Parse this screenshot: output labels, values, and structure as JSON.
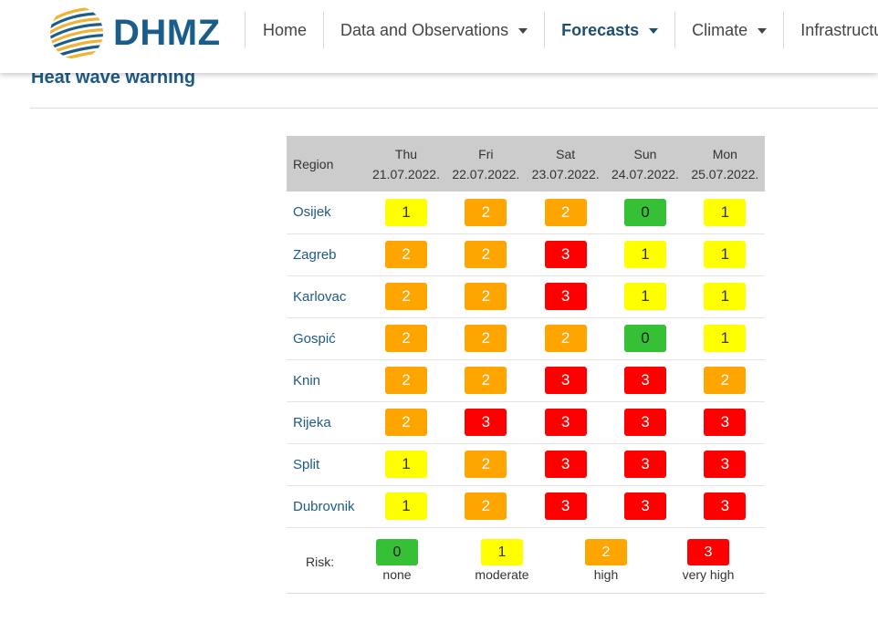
{
  "brand": {
    "logo_text": "DHMZ",
    "color": "#1b5d8a"
  },
  "nav": [
    {
      "label": "Home",
      "dropdown": false,
      "active": false
    },
    {
      "label": "Data and Observations",
      "dropdown": true,
      "active": false
    },
    {
      "label": "Forecasts",
      "dropdown": true,
      "active": true
    },
    {
      "label": "Climate",
      "dropdown": true,
      "active": false
    },
    {
      "label": "Infrastructure",
      "dropdown": false,
      "active": false
    }
  ],
  "page": {
    "title": "Heat wave warning"
  },
  "table": {
    "region_header": "Region",
    "days": [
      {
        "name": "Thu",
        "date": "21.07.2022."
      },
      {
        "name": "Fri",
        "date": "22.07.2022."
      },
      {
        "name": "Sat",
        "date": "23.07.2022."
      },
      {
        "name": "Sun",
        "date": "24.07.2022."
      },
      {
        "name": "Mon",
        "date": "25.07.2022."
      }
    ],
    "rows": [
      {
        "region": "Osijek",
        "values": [
          "1",
          "2",
          "2",
          "0",
          "1"
        ]
      },
      {
        "region": "Zagreb",
        "values": [
          "2",
          "2",
          "3",
          "1",
          "1"
        ]
      },
      {
        "region": "Karlovac",
        "values": [
          "2",
          "2",
          "3",
          "1",
          "1"
        ]
      },
      {
        "region": "Gospić",
        "values": [
          "2",
          "2",
          "2",
          "0",
          "1"
        ]
      },
      {
        "region": "Knin",
        "values": [
          "2",
          "2",
          "3",
          "3",
          "2"
        ]
      },
      {
        "region": "Rijeka",
        "values": [
          "2",
          "3",
          "3",
          "3",
          "3"
        ]
      },
      {
        "region": "Split",
        "values": [
          "1",
          "2",
          "3",
          "3",
          "3"
        ]
      },
      {
        "region": "Dubrovnik",
        "values": [
          "1",
          "2",
          "3",
          "3",
          "3"
        ]
      }
    ]
  },
  "legend": {
    "label": "Risk:",
    "items": [
      {
        "value": "0",
        "text": "none"
      },
      {
        "value": "1",
        "text": "moderate"
      },
      {
        "value": "2",
        "text": "high"
      },
      {
        "value": "3",
        "text": "very high"
      }
    ]
  },
  "risk_colors": {
    "0": "#35c035",
    "1": "#ffff00",
    "2": "#ffa500",
    "3": "#ff0000"
  }
}
